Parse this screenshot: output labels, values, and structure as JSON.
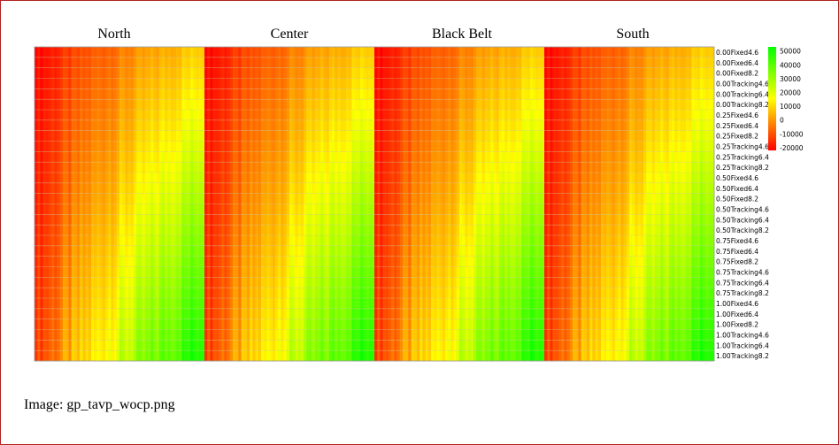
{
  "chart_data": {
    "type": "heatmap",
    "column_groups": [
      "North",
      "Center",
      "Black Belt",
      "South"
    ],
    "row_labels": [
      "0.00Fixed4.6",
      "0.00Fixed6.4",
      "0.00Fixed8.2",
      "0.00Tracking4.6",
      "0.00Tracking6.4",
      "0.00Tracking8.2",
      "0.25Fixed4.6",
      "0.25Fixed6.4",
      "0.25Fixed8.2",
      "0.25Tracking4.6",
      "0.25Tracking6.4",
      "0.25Tracking8.2",
      "0.50Fixed4.6",
      "0.50Fixed6.4",
      "0.50Fixed8.2",
      "0.50Tracking4.6",
      "0.50Tracking6.4",
      "0.50Tracking8.2",
      "0.75Fixed4.6",
      "0.75Fixed6.4",
      "0.75Fixed8.2",
      "0.75Tracking4.6",
      "0.75Tracking6.4",
      "0.75Tracking8.2",
      "1.00Fixed4.6",
      "1.00Fixed6.4",
      "1.00Fixed8.2",
      "1.00Tracking4.6",
      "1.00Tracking6.4",
      "1.00Tracking8.2"
    ],
    "colorbar": {
      "ticks": [
        "50000",
        "40000",
        "30000",
        "20000",
        "10000",
        "0",
        "-10000",
        "-20000"
      ],
      "min": -22000,
      "max": 53000,
      "colors": [
        "#ff0000",
        "#ffff00",
        "#00ff00"
      ]
    },
    "value_range_by_row": {
      "first_row": [
        -22000,
        10000
      ],
      "last_row": [
        -15000,
        52000
      ]
    }
  },
  "caption": "Image: gp_tavp_wocp.png"
}
